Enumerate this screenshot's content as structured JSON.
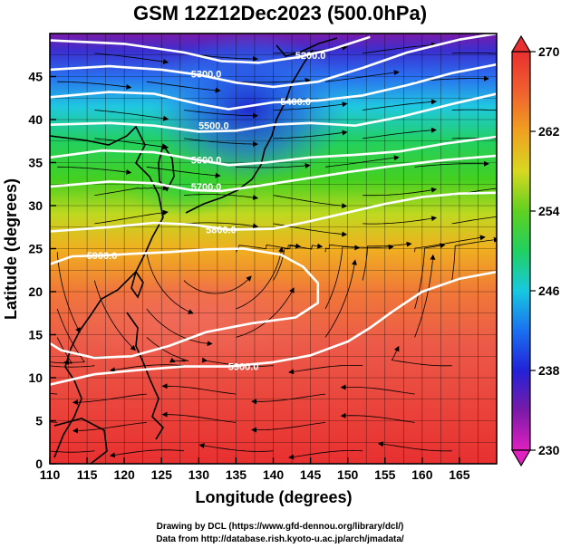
{
  "title": "GSM 12Z12Dec2023 (500.0hPa)",
  "credits": {
    "line1": "Drawing by DCL (https://www.gfd-dennou.org/library/dcl/)",
    "line2": "Data from http://database.rish.kyoto-u.ac.jp/arch/jmadata/"
  },
  "chart_data": {
    "type": "heatmap",
    "title": "GSM 12Z12Dec2023 (500.0hPa)",
    "xlabel": "Longitude (degrees)",
    "ylabel": "Latitude  (degrees)",
    "xlim": [
      110,
      170
    ],
    "ylim": [
      0,
      50
    ],
    "x_ticks": [
      "110",
      "115",
      "120",
      "125",
      "130",
      "135",
      "140",
      "145",
      "150",
      "155",
      "160",
      "165"
    ],
    "y_ticks": [
      "0",
      "5",
      "10",
      "15",
      "20",
      "25",
      "30",
      "35",
      "40",
      "45"
    ],
    "x_tick_values": [
      110,
      115,
      120,
      125,
      130,
      135,
      140,
      145,
      150,
      155,
      160,
      165
    ],
    "y_tick_values": [
      0,
      5,
      10,
      15,
      20,
      25,
      30,
      35,
      40,
      45
    ],
    "grid": true,
    "colorbar": {
      "range": [
        230,
        270
      ],
      "ticks": [
        "230",
        "238",
        "246",
        "254",
        "262",
        "270"
      ],
      "tick_values": [
        230,
        238,
        246,
        254,
        262,
        270
      ],
      "colors": [
        "#e020c0",
        "#7a1aa8",
        "#2222d8",
        "#1aa0f0",
        "#18d8c0",
        "#20d020",
        "#c8d820",
        "#f0b020",
        "#f07030",
        "#e83030"
      ]
    },
    "contour_labels": [
      "5200.0",
      "5300.0",
      "5400.0",
      "5500.0",
      "5600.0",
      "5700.0",
      "5800.0",
      "5900.0"
    ],
    "contours": [
      {
        "label": "5200.0",
        "label_lon": 145,
        "label_lat": 47.5,
        "points": [
          [
            110,
            49.2
          ],
          [
            120,
            48.8
          ],
          [
            128,
            47.8
          ],
          [
            133,
            46.8
          ],
          [
            138,
            46.6
          ],
          [
            143,
            47.2
          ],
          [
            148,
            48.2
          ],
          [
            153,
            49.6
          ]
        ]
      },
      {
        "label": "5300.0",
        "label_lon": 131,
        "label_lat": 45.3,
        "points": [
          [
            110,
            45.8
          ],
          [
            118,
            46.2
          ],
          [
            125,
            45.8
          ],
          [
            130,
            45.2
          ],
          [
            135,
            44.3
          ],
          [
            140,
            43.8
          ],
          [
            146,
            44.4
          ],
          [
            152,
            46
          ],
          [
            158,
            47.8
          ],
          [
            165,
            49.3
          ],
          [
            170,
            50
          ]
        ]
      },
      {
        "label": "5400.0",
        "label_lon": 143,
        "label_lat": 42.1,
        "points": [
          [
            110,
            42.6
          ],
          [
            118,
            43.2
          ],
          [
            124,
            43
          ],
          [
            130,
            41.8
          ],
          [
            134,
            41.2
          ],
          [
            140,
            42
          ],
          [
            146,
            42.2
          ],
          [
            152,
            42.8
          ],
          [
            158,
            44
          ],
          [
            164,
            45.4
          ],
          [
            170,
            46.4
          ]
        ]
      },
      {
        "label": "5500.0",
        "label_lon": 132,
        "label_lat": 39.3,
        "points": [
          [
            110,
            39.4
          ],
          [
            118,
            39.6
          ],
          [
            124,
            39.3
          ],
          [
            130,
            38.6
          ],
          [
            135,
            38.7
          ],
          [
            140,
            39.4
          ],
          [
            145,
            39.6
          ],
          [
            151,
            39.3
          ],
          [
            157,
            40.3
          ],
          [
            164,
            41.8
          ],
          [
            170,
            43
          ]
        ]
      },
      {
        "label": "5600.0",
        "label_lon": 131,
        "label_lat": 35.3,
        "points": [
          [
            110,
            35.6
          ],
          [
            117,
            36.4
          ],
          [
            124,
            36.2
          ],
          [
            130,
            35.3
          ],
          [
            134,
            34.7
          ],
          [
            139,
            35
          ],
          [
            145,
            35.6
          ],
          [
            151,
            35.9
          ],
          [
            157,
            36.3
          ],
          [
            163,
            37.2
          ],
          [
            170,
            38
          ]
        ]
      },
      {
        "label": "5700.0",
        "label_lon": 131,
        "label_lat": 32.2,
        "points": [
          [
            110,
            32.2
          ],
          [
            118,
            32.8
          ],
          [
            124,
            32.6
          ],
          [
            129,
            31.8
          ],
          [
            133,
            31.7
          ],
          [
            138,
            32.3
          ],
          [
            144,
            33.1
          ],
          [
            150,
            33.9
          ],
          [
            156,
            34.6
          ],
          [
            163,
            35.3
          ],
          [
            170,
            35.8
          ]
        ]
      },
      {
        "label": "5800.0",
        "label_lon": 133,
        "label_lat": 27.2,
        "points": [
          [
            110,
            27
          ],
          [
            118,
            27.5
          ],
          [
            124,
            28
          ],
          [
            129,
            27.8
          ],
          [
            134,
            27.2
          ],
          [
            140,
            27.3
          ],
          [
            145,
            28.2
          ],
          [
            150,
            29.2
          ],
          [
            155,
            30.2
          ],
          [
            160,
            31
          ],
          [
            165,
            31.4
          ],
          [
            170,
            31.5
          ]
        ]
      },
      {
        "label": "5900.0",
        "label_lon": 117,
        "label_lat": 24.2,
        "points": [
          [
            110,
            23.2
          ],
          [
            113,
            24.1
          ],
          [
            117,
            24.2
          ],
          [
            121,
            24.4
          ],
          [
            126,
            24.6
          ],
          [
            131,
            24.9
          ],
          [
            136,
            25
          ],
          [
            141,
            24.3
          ],
          [
            144,
            22.9
          ],
          [
            146,
            21
          ],
          [
            146,
            18.7
          ],
          [
            143,
            17
          ],
          [
            137,
            16.3
          ],
          [
            131,
            15.3
          ],
          [
            126,
            13.7
          ],
          [
            121,
            12.5
          ],
          [
            116,
            12.3
          ],
          [
            111.5,
            13.2
          ],
          [
            110,
            14
          ]
        ]
      },
      {
        "label": "5900.0",
        "label_lon": 136,
        "label_lat": 11.3,
        "points": [
          [
            110,
            9.2
          ],
          [
            116,
            10.4
          ],
          [
            122,
            10.9
          ],
          [
            128,
            11.3
          ],
          [
            134,
            11.3
          ],
          [
            140,
            11.8
          ],
          [
            145,
            12.6
          ],
          [
            150,
            14.2
          ],
          [
            153,
            15.8
          ],
          [
            156,
            17.7
          ],
          [
            160,
            20
          ],
          [
            165,
            21.5
          ],
          [
            170,
            22.3
          ]
        ]
      }
    ]
  }
}
